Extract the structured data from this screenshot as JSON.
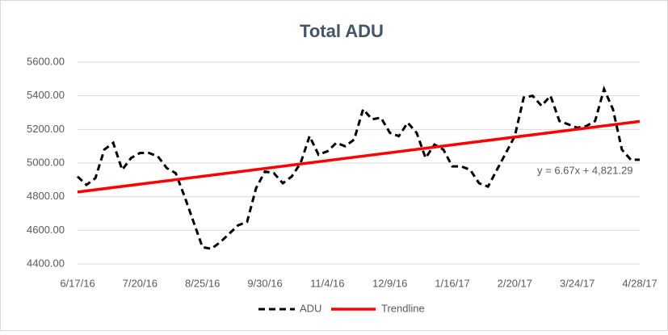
{
  "chart_data": {
    "type": "line",
    "title": "Total ADU",
    "categories": [
      "6/17/16",
      null,
      null,
      null,
      null,
      null,
      null,
      "7/20/16",
      null,
      null,
      null,
      null,
      null,
      null,
      "8/25/16",
      null,
      null,
      null,
      null,
      null,
      null,
      "9/30/16",
      null,
      null,
      null,
      null,
      null,
      null,
      "11/4/16",
      null,
      null,
      null,
      null,
      null,
      null,
      "12/9/16",
      null,
      null,
      null,
      null,
      null,
      null,
      "1/16/17",
      null,
      null,
      null,
      null,
      null,
      null,
      "2/20/17",
      null,
      null,
      null,
      null,
      null,
      null,
      "3/24/17",
      null,
      null,
      null,
      null,
      null,
      null,
      "4/28/17"
    ],
    "series": [
      {
        "name": "ADU",
        "color": "#000000",
        "values": [
          4920,
          4870,
          4910,
          5080,
          5120,
          4960,
          5030,
          5060,
          5060,
          5040,
          4970,
          4940,
          4800,
          4650,
          4500,
          4490,
          4530,
          4580,
          4630,
          4650,
          4850,
          4950,
          4940,
          4880,
          4920,
          5000,
          5160,
          5050,
          5070,
          5120,
          5100,
          5140,
          5320,
          5260,
          5270,
          5180,
          5160,
          5240,
          5180,
          5030,
          5110,
          5080,
          4980,
          4980,
          4960,
          4880,
          4860,
          4960,
          5060,
          5160,
          5390,
          5400,
          5340,
          5400,
          5250,
          5230,
          5210,
          5220,
          5250,
          5440,
          5320,
          5080,
          5020,
          5020
        ]
      }
    ],
    "trendline": {
      "name": "Trendline",
      "color": "#ff0000",
      "start": 4828,
      "end": 5248
    },
    "annotation": "y = 6.67x + 4,821.29",
    "ylim": [
      4400,
      5600
    ],
    "yticks": [
      {
        "value": 4400,
        "label": "4400.00"
      },
      {
        "value": 4600,
        "label": "4600.00"
      },
      {
        "value": 4800,
        "label": "4800.00"
      },
      {
        "value": 5000,
        "label": "5000.00"
      },
      {
        "value": 5200,
        "label": "5200.00"
      },
      {
        "value": 5400,
        "label": "5400.00"
      },
      {
        "value": 5600,
        "label": "5600.00"
      }
    ],
    "grid": true
  }
}
